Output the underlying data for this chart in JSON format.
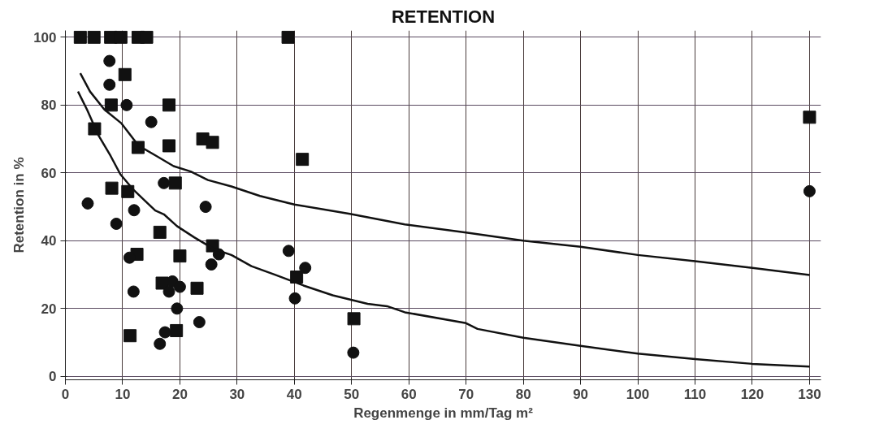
{
  "chart_data": {
    "type": "scatter",
    "title": "RETENTION",
    "xlabel": "Regenmenge in mm/Tag m²",
    "ylabel": "Retention in %",
    "xlim": [
      0,
      132
    ],
    "ylim": [
      -1,
      102
    ],
    "xticks": [
      0,
      10,
      20,
      30,
      40,
      50,
      60,
      70,
      80,
      90,
      100,
      110,
      120,
      130
    ],
    "yticks": [
      0,
      20,
      40,
      60,
      80,
      100
    ],
    "grid": true,
    "series": [
      {
        "marker": "square",
        "color": "#111111",
        "x": [
          2.6,
          5,
          7.9,
          9.7,
          12.7,
          14.2,
          38.9,
          10.4,
          8,
          18.1,
          5.1,
          18.1,
          12.7,
          24,
          25.7,
          41.4,
          8.1,
          10.9,
          19.2,
          16.5,
          12.5,
          20,
          25.7,
          16.9,
          23,
          40.4,
          11.3,
          19.4,
          50.4,
          130
        ],
        "values": [
          100,
          100,
          100,
          100,
          100,
          100,
          100,
          89,
          80,
          80,
          73,
          68,
          67.5,
          70,
          69,
          64,
          55.5,
          54.5,
          57,
          42.5,
          36,
          35.5,
          38.5,
          27.5,
          26,
          29.3,
          12,
          13.5,
          17,
          76.4
        ]
      },
      {
        "marker": "circle",
        "color": "#111111",
        "x": [
          7.7,
          7.7,
          10.7,
          15,
          3.9,
          8.9,
          12,
          17.2,
          24.5,
          11.2,
          25.5,
          26.8,
          11.9,
          18.7,
          18.1,
          20,
          19.5,
          23.4,
          17.4,
          16.5,
          39,
          41.9,
          40.1,
          50.3,
          130
        ],
        "values": [
          93,
          86,
          80,
          75,
          51,
          45,
          49,
          57,
          50,
          35,
          33,
          36,
          25,
          28,
          25,
          26.4,
          20,
          16,
          13,
          9.6,
          37,
          32,
          23,
          7,
          54.6
        ]
      },
      {
        "type": "line",
        "color": "#111111",
        "x": [
          2.6,
          4.3,
          6.8,
          9.8,
          12.8,
          15.9,
          18.9,
          21.9,
          24.9,
          29,
          34,
          40,
          49.7,
          59.3,
          70,
          80,
          90,
          100,
          110,
          120,
          130
        ],
        "values": [
          89.4,
          84,
          78.7,
          74.6,
          68,
          65,
          62,
          60.4,
          57.9,
          56,
          53.2,
          50.7,
          47.9,
          44.8,
          42.4,
          40,
          38.2,
          35.8,
          34,
          32,
          29.9
        ]
      },
      {
        "type": "line",
        "color": "#111111",
        "x": [
          2.2,
          3.8,
          5.8,
          7.9,
          9.6,
          11.9,
          13.9,
          15.7,
          17.2,
          19.5,
          22.5,
          26,
          29,
          32.5,
          36.6,
          41.6,
          46.7,
          52.8,
          56.2,
          59.3,
          70,
          72,
          80,
          90,
          100,
          110,
          120,
          130
        ],
        "values": [
          84,
          78.6,
          71,
          65,
          59.6,
          55,
          51.8,
          48.9,
          47.8,
          44.3,
          41,
          37.5,
          35.8,
          32.5,
          30,
          26.8,
          23.9,
          21.4,
          20.7,
          18.9,
          15.7,
          14,
          11.4,
          9,
          6.7,
          5.1,
          3.7,
          2.9
        ]
      }
    ]
  }
}
